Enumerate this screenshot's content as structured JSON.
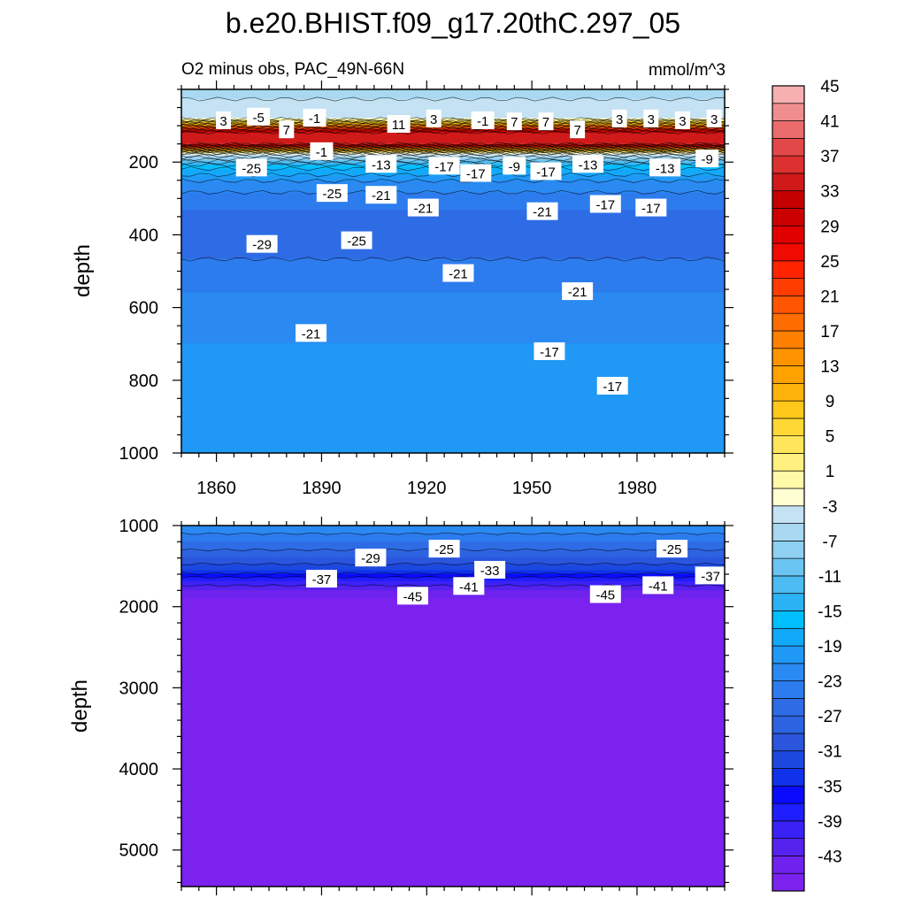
{
  "chart_data": {
    "type": "contour",
    "title": "b.e20.BHIST.f09_g17.20thC.297_05",
    "subtitle": "O2 minus obs, PAC_49N-66N",
    "units": "mmol/m^3",
    "xlabel": "",
    "ylabel": "depth",
    "x_ticks": [
      1860,
      1890,
      1920,
      1950,
      1980
    ],
    "xlim": [
      1850,
      2005
    ],
    "panels": [
      {
        "name": "upper",
        "ylim": [
          0,
          1000
        ],
        "y_ticks": [
          200,
          400,
          600,
          800,
          1000
        ],
        "y_reversed": true,
        "profile": [
          [
            0,
            -6
          ],
          [
            80,
            -3
          ],
          [
            120,
            33
          ],
          [
            150,
            35
          ],
          [
            175,
            -2
          ],
          [
            210,
            -16
          ],
          [
            260,
            -22
          ],
          [
            330,
            -25
          ],
          [
            420,
            -26
          ],
          [
            560,
            -23
          ],
          [
            700,
            -21
          ],
          [
            850,
            -20
          ],
          [
            1000,
            -19
          ]
        ],
        "contour_labels": [
          {
            "x": 1862,
            "depth": 85,
            "text": "3"
          },
          {
            "x": 1872,
            "depth": 75,
            "text": "-5"
          },
          {
            "x": 1880,
            "depth": 110,
            "text": "7"
          },
          {
            "x": 1888,
            "depth": 78,
            "text": "-1"
          },
          {
            "x": 1890,
            "depth": 170,
            "text": "-1"
          },
          {
            "x": 1912,
            "depth": 95,
            "text": "11"
          },
          {
            "x": 1922,
            "depth": 80,
            "text": "3"
          },
          {
            "x": 1936,
            "depth": 85,
            "text": "-1"
          },
          {
            "x": 1945,
            "depth": 88,
            "text": "7"
          },
          {
            "x": 1954,
            "depth": 88,
            "text": "7"
          },
          {
            "x": 1963,
            "depth": 110,
            "text": "7"
          },
          {
            "x": 1975,
            "depth": 80,
            "text": "3"
          },
          {
            "x": 1984,
            "depth": 80,
            "text": "3"
          },
          {
            "x": 1993,
            "depth": 85,
            "text": "3"
          },
          {
            "x": 2002,
            "depth": 80,
            "text": "3"
          },
          {
            "x": 1870,
            "depth": 215,
            "text": "-25"
          },
          {
            "x": 1907,
            "depth": 205,
            "text": "-13"
          },
          {
            "x": 1925,
            "depth": 210,
            "text": "-17"
          },
          {
            "x": 1934,
            "depth": 230,
            "text": "-17"
          },
          {
            "x": 1945,
            "depth": 210,
            "text": "-9"
          },
          {
            "x": 1954,
            "depth": 225,
            "text": "-17"
          },
          {
            "x": 1966,
            "depth": 205,
            "text": "-13"
          },
          {
            "x": 1988,
            "depth": 215,
            "text": "-13"
          },
          {
            "x": 2000,
            "depth": 190,
            "text": "-9"
          },
          {
            "x": 1893,
            "depth": 285,
            "text": "-25"
          },
          {
            "x": 1907,
            "depth": 290,
            "text": "-21"
          },
          {
            "x": 1919,
            "depth": 325,
            "text": "-21"
          },
          {
            "x": 1953,
            "depth": 335,
            "text": "-21"
          },
          {
            "x": 1971,
            "depth": 315,
            "text": "-17"
          },
          {
            "x": 1984,
            "depth": 325,
            "text": "-17"
          },
          {
            "x": 1873,
            "depth": 425,
            "text": "-29"
          },
          {
            "x": 1900,
            "depth": 415,
            "text": "-25"
          },
          {
            "x": 1929,
            "depth": 505,
            "text": "-21"
          },
          {
            "x": 1963,
            "depth": 555,
            "text": "-21"
          },
          {
            "x": 1887,
            "depth": 670,
            "text": "-21"
          },
          {
            "x": 1955,
            "depth": 720,
            "text": "-17"
          },
          {
            "x": 1973,
            "depth": 815,
            "text": "-17"
          }
        ]
      },
      {
        "name": "lower",
        "ylim": [
          1000,
          5450
        ],
        "y_ticks": [
          1000,
          2000,
          3000,
          4000,
          5000
        ],
        "y_reversed": true,
        "profile": [
          [
            1000,
            -21
          ],
          [
            1200,
            -25
          ],
          [
            1400,
            -29
          ],
          [
            1550,
            -33
          ],
          [
            1680,
            -39
          ],
          [
            1800,
            -43
          ],
          [
            1900,
            -45
          ],
          [
            5450,
            -46
          ]
        ],
        "contour_labels": [
          {
            "x": 1890,
            "depth": 1655,
            "text": "-37"
          },
          {
            "x": 1904,
            "depth": 1395,
            "text": "-29"
          },
          {
            "x": 1916,
            "depth": 1865,
            "text": "-45"
          },
          {
            "x": 1925,
            "depth": 1285,
            "text": "-25"
          },
          {
            "x": 1932,
            "depth": 1745,
            "text": "-41"
          },
          {
            "x": 1938,
            "depth": 1545,
            "text": "-33"
          },
          {
            "x": 1971,
            "depth": 1845,
            "text": "-45"
          },
          {
            "x": 1986,
            "depth": 1735,
            "text": "-41"
          },
          {
            "x": 1990,
            "depth": 1285,
            "text": "-25"
          },
          {
            "x": 2001,
            "depth": 1615,
            "text": "-37"
          }
        ]
      }
    ],
    "colorbar": {
      "levels": [
        -47,
        -45,
        -43,
        -41,
        -39,
        -37,
        -35,
        -33,
        -31,
        -29,
        -27,
        -25,
        -23,
        -21,
        -19,
        -17,
        -15,
        -13,
        -11,
        -9,
        -7,
        -5,
        -3,
        -1,
        1,
        3,
        5,
        7,
        9,
        11,
        13,
        15,
        17,
        19,
        21,
        23,
        25,
        27,
        29,
        31,
        33,
        35,
        37,
        39,
        41,
        43,
        45,
        47
      ],
      "labels": [
        -43,
        -39,
        -35,
        -31,
        -27,
        -23,
        -19,
        -15,
        -11,
        -7,
        -3,
        1,
        5,
        9,
        13,
        17,
        21,
        25,
        29,
        33,
        37,
        41,
        45
      ],
      "colors": [
        "#7b22ee",
        "#6f22ee",
        "#5522ee",
        "#3a22f6",
        "#1e1efe",
        "#0a0aff",
        "#0f32ea",
        "#1d48e0",
        "#2a55dc",
        "#2d63e0",
        "#2e6ce6",
        "#2c7cee",
        "#2a8af2",
        "#1f99f5",
        "#13a9fa",
        "#00bfff",
        "#2ab2f4",
        "#4cbcf2",
        "#6ac5f2",
        "#8dd0f2",
        "#a8d8f2",
        "#c4e2f4",
        "#ffffd2",
        "#fffaa8",
        "#fff080",
        "#ffe55a",
        "#ffd835",
        "#ffc81a",
        "#ffb40c",
        "#ffa200",
        "#ff9400",
        "#ff8000",
        "#ff6c00",
        "#ff5400",
        "#ff3c00",
        "#ff2400",
        "#f00a00",
        "#e00000",
        "#cc0000",
        "#c50000",
        "#d01a1a",
        "#dd3030",
        "#e34848",
        "#ea6c6c",
        "#f08e8e",
        "#f7b0b0"
      ]
    }
  }
}
